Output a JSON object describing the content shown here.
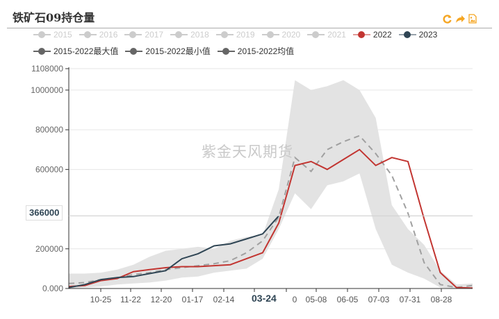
{
  "header": {
    "title": "铁矿石09持仓量",
    "toolbox": [
      {
        "name": "restore-icon",
        "glyph": "⟳"
      },
      {
        "name": "data-view-icon",
        "glyph": "➦"
      },
      {
        "name": "save-image-icon",
        "glyph": "▣"
      }
    ]
  },
  "legend": {
    "row1": [
      {
        "label": "2015",
        "color": "#cccccc",
        "active": false
      },
      {
        "label": "2016",
        "color": "#cccccc",
        "active": false
      },
      {
        "label": "2017",
        "color": "#cccccc",
        "active": false
      },
      {
        "label": "2018",
        "color": "#cccccc",
        "active": false
      },
      {
        "label": "2019",
        "color": "#cccccc",
        "active": false
      },
      {
        "label": "2020",
        "color": "#cccccc",
        "active": false
      },
      {
        "label": "2021",
        "color": "#cccccc",
        "active": false
      },
      {
        "label": "2022",
        "color": "#c23531",
        "active": true
      },
      {
        "label": "2023",
        "color": "#2f4554",
        "active": true
      }
    ],
    "row2": [
      {
        "label": "2015-2022最大值",
        "color": "#666666",
        "active": true
      },
      {
        "label": "2015-2022最小值",
        "color": "#666666",
        "active": true
      },
      {
        "label": "2015-2022均值",
        "color": "#666666",
        "active": true
      }
    ]
  },
  "watermark": "紫金天风期货",
  "axis_pointer": {
    "y_label": "366000",
    "x_label": "03-24"
  },
  "colors": {
    "s2022": "#c23531",
    "s2023": "#2f4554",
    "band": "#e3e3e3",
    "mean": "#a0a0a0",
    "accent": "#f5a623"
  },
  "chart_data": {
    "type": "line",
    "title": "铁矿石09持仓量",
    "xlabel": "",
    "ylabel": "",
    "ylim": [
      0,
      1108000
    ],
    "y_ticks": [
      "0.000",
      "200000",
      "366000",
      "600000",
      "800000",
      "1000000",
      "1108000"
    ],
    "x_ticks": [
      "10-25",
      "11-22",
      "12-20",
      "01-17",
      "02-14",
      "03-24",
      "0",
      "05-08",
      "06-05",
      "07-03",
      "07-31",
      "08-28"
    ],
    "x": [
      "09-27",
      "10-11",
      "10-25",
      "11-08",
      "11-22",
      "12-06",
      "12-20",
      "01-03",
      "01-17",
      "01-31",
      "02-14",
      "02-28",
      "03-14",
      "03-24",
      "04-10",
      "04-24",
      "05-08",
      "05-22",
      "06-05",
      "06-19",
      "07-03",
      "07-17",
      "07-31",
      "08-14",
      "08-28",
      "09-11"
    ],
    "series": [
      {
        "name": "2022",
        "values": [
          10000,
          15000,
          40000,
          50000,
          85000,
          95000,
          105000,
          110000,
          110000,
          115000,
          120000,
          150000,
          180000,
          330000,
          620000,
          640000,
          600000,
          650000,
          700000,
          620000,
          660000,
          640000,
          350000,
          80000,
          5000,
          2000
        ]
      },
      {
        "name": "2023",
        "values": [
          5000,
          20000,
          45000,
          55000,
          60000,
          75000,
          90000,
          150000,
          175000,
          215000,
          225000,
          250000,
          275000,
          366000
        ]
      },
      {
        "name": "2015-2022最大值",
        "values": [
          75000,
          75000,
          80000,
          95000,
          120000,
          160000,
          190000,
          200000,
          210000,
          200000,
          240000,
          260000,
          270000,
          500000,
          1050000,
          1000000,
          1020000,
          1050000,
          1000000,
          860000,
          420000,
          300000,
          220000,
          90000,
          20000,
          25000
        ]
      },
      {
        "name": "2015-2022最小值",
        "values": [
          0,
          5000,
          10000,
          20000,
          25000,
          30000,
          40000,
          55000,
          60000,
          80000,
          90000,
          100000,
          150000,
          300000,
          480000,
          400000,
          520000,
          540000,
          580000,
          300000,
          120000,
          80000,
          50000,
          5000,
          0,
          0
        ]
      },
      {
        "name": "2015-2022均值",
        "values": [
          25000,
          30000,
          45000,
          55000,
          70000,
          80000,
          95000,
          105000,
          115000,
          125000,
          140000,
          180000,
          240000,
          360000,
          660000,
          590000,
          700000,
          740000,
          770000,
          680000,
          570000,
          380000,
          130000,
          20000,
          5000,
          15000
        ]
      }
    ]
  }
}
